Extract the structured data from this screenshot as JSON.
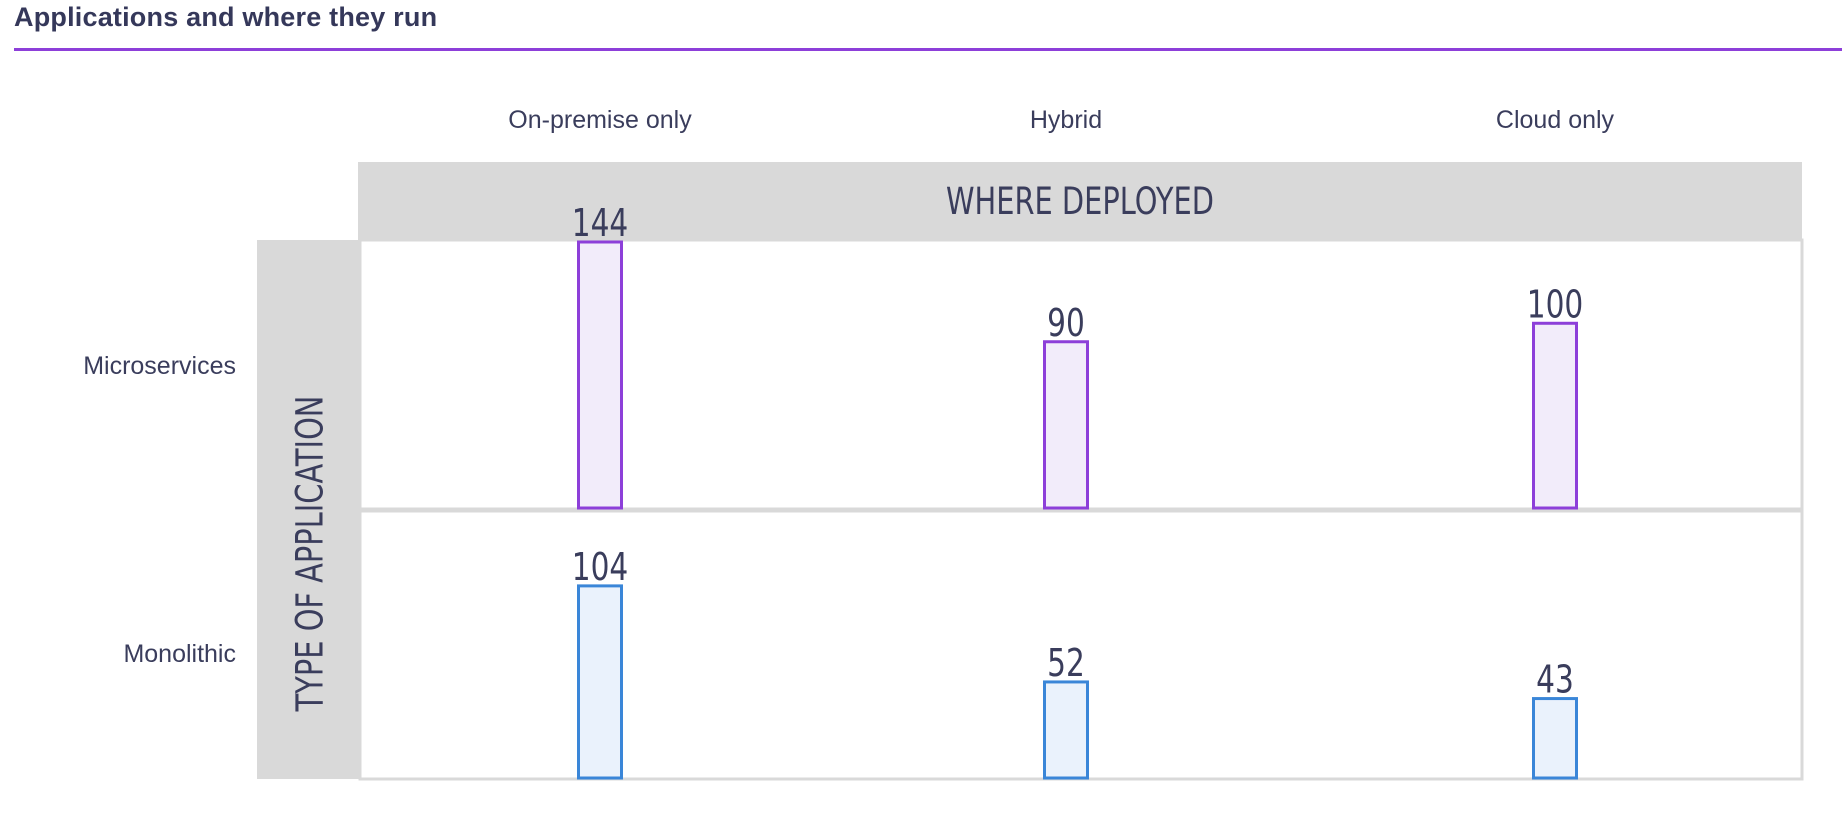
{
  "title": "Applications and where they run",
  "chart_data": {
    "type": "bar",
    "x_axis_title": "WHERE DEPLOYED",
    "y_axis_title": "TYPE OF APPLICATION",
    "columns": [
      "On-premise only",
      "Hybrid",
      "Cloud only"
    ],
    "rows": [
      {
        "name": "Microservices",
        "values": [
          144,
          90,
          100
        ],
        "stroke": "#8d3fd9",
        "fill": "#f2ecfa"
      },
      {
        "name": "Monolithic",
        "values": [
          104,
          52,
          43
        ],
        "stroke": "#3a86d8",
        "fill": "#eaf2fc"
      }
    ],
    "ylim": [
      0,
      144
    ],
    "colors": {
      "header_bg": "#d9d9d9",
      "text": "#3a3d5c"
    }
  }
}
